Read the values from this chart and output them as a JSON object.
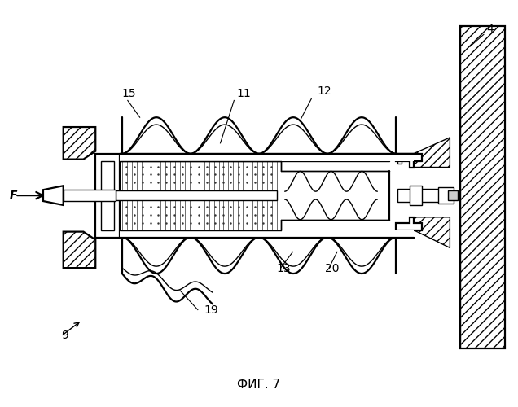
{
  "title": "ФИГ. 7",
  "bg_color": "#ffffff",
  "lc": "#000000",
  "lw": 1.0,
  "lw2": 1.6,
  "fig_width": 6.36,
  "fig_height": 5.0,
  "dpi": 100
}
